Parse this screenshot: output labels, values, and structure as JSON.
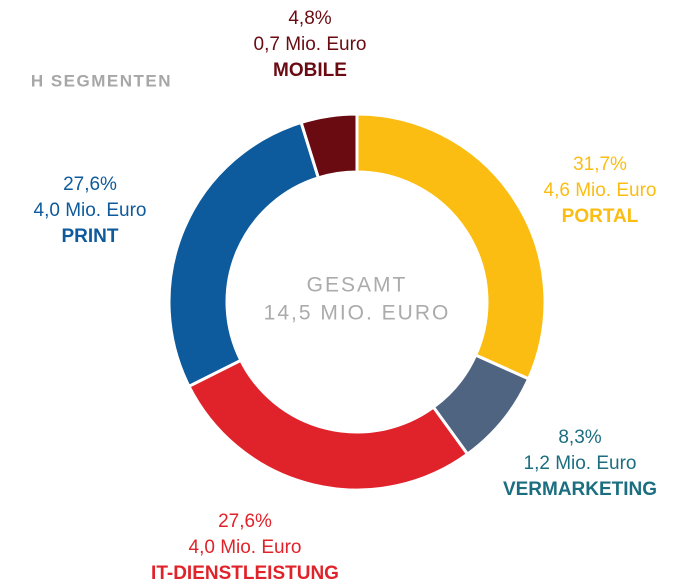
{
  "chart_data": {
    "type": "donut",
    "title": "H SEGMENTEN",
    "center_text": [
      "GESAMT",
      "14,5 MIO. EURO"
    ],
    "categories": [
      "PORTAL",
      "VERMARKETING",
      "IT-DIENSTLEISTUNG",
      "PRINT",
      "MOBILE"
    ],
    "values": [
      31.7,
      8.3,
      27.6,
      27.6,
      4.8
    ],
    "value_labels": [
      "31,7%",
      "8,3%",
      "27,6%",
      "27,6%",
      "4,8%"
    ],
    "amount_labels": [
      "4,6 Mio. Euro",
      "1,2 Mio. Euro",
      "4,0 Mio. Euro",
      "4,0 Mio. Euro",
      "0,7 Mio. Euro"
    ],
    "colors": [
      "#fbbd12",
      "#4f6480",
      "#e0232a",
      "#0d5a9c",
      "#6a0b12"
    ],
    "label_colors": [
      "#fbbd12",
      "#1b6e80",
      "#e0232a",
      "#0d5a9c",
      "#6a0b12"
    ]
  }
}
